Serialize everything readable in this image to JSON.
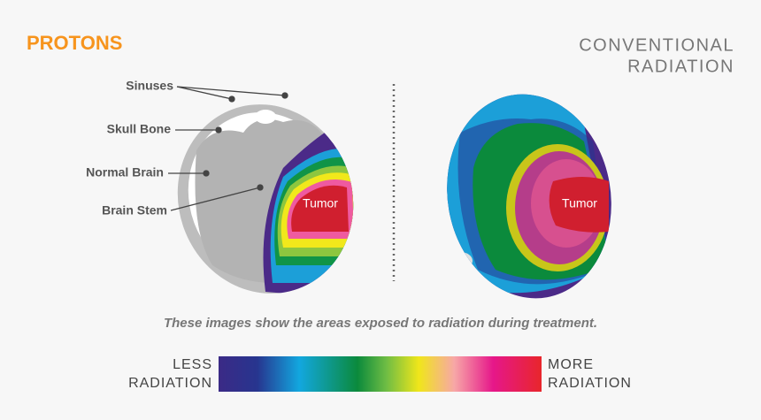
{
  "header": {
    "left_title": "PROTONS",
    "right_title": [
      "CONVENTIONAL",
      "RADIATION"
    ]
  },
  "left_image": {
    "labels": [
      "Sinuses",
      "Skull Bone",
      "Normal Brain",
      "Brain Stem"
    ],
    "tumor": "Tumor"
  },
  "right_image": {
    "tumor": "Tumor"
  },
  "caption": "These images show the areas exposed to radiation during treatment.",
  "legend": {
    "low": [
      "LESS",
      "RADIATION"
    ],
    "high": [
      "MORE",
      "RADIATION"
    ]
  }
}
